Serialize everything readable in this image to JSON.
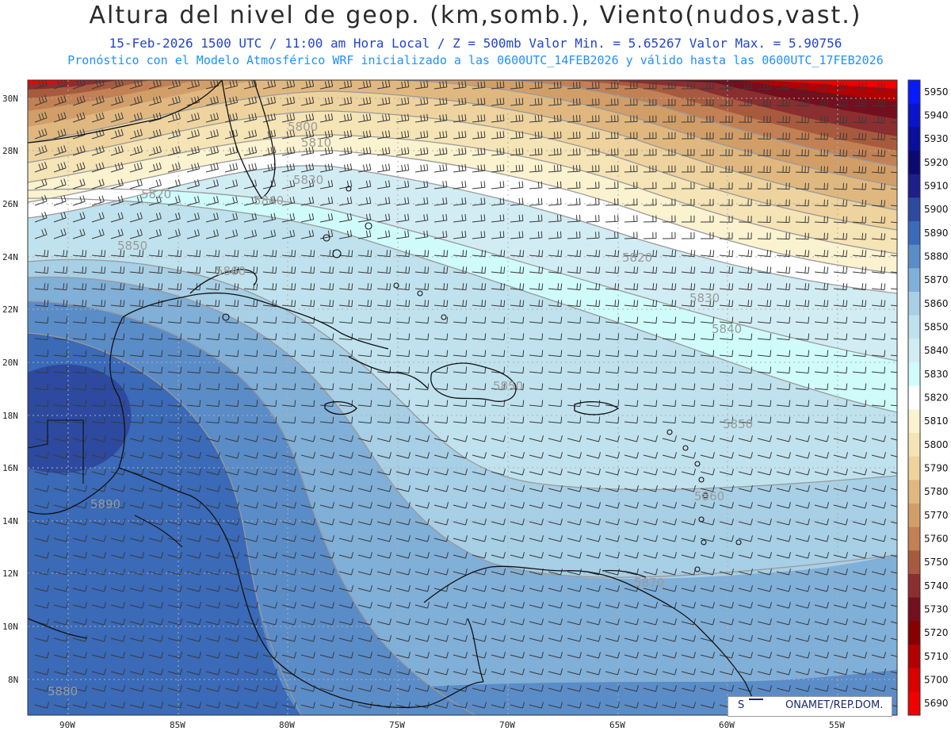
{
  "header": {
    "title": "Altura del nivel de geop. (km,somb.), Viento(nudos,vast.)",
    "subtitle": "15-Feb-2026  1500 UTC / 11:00 am Hora Local / Z = 500mb    Valor Min. = 5.65267  Valor Max. = 5.90756",
    "subtitle2": "Pronóstico con el Modelo Atmosférico WRF inicializado a las 0600UTC_14FEB2026 y válido hasta las  0600UTC_17FEB2026"
  },
  "axes": {
    "lat_ticks": [
      "30N",
      "28N",
      "26N",
      "24N",
      "22N",
      "20N",
      "18N",
      "16N",
      "14N",
      "12N",
      "10N",
      "8N"
    ],
    "lon_ticks": [
      "90W",
      "85W",
      "80W",
      "75W",
      "70W",
      "65W",
      "60W",
      "55W"
    ]
  },
  "colorbar": {
    "levels": [
      "5950",
      "5940",
      "5930",
      "5920",
      "5910",
      "5900",
      "5890",
      "5880",
      "5870",
      "5860",
      "5850",
      "5840",
      "5830",
      "5820",
      "5810",
      "5800",
      "5790",
      "5780",
      "5770",
      "5760",
      "5750",
      "5740",
      "5730",
      "5720",
      "5710",
      "5700",
      "5690"
    ],
    "colors": [
      "#0a1aff",
      "#0a14c8",
      "#0a0e9c",
      "#0c0a72",
      "#1e1e8c",
      "#2d4aa0",
      "#3a6ab8",
      "#5a8cc8",
      "#80afd8",
      "#a7cfe6",
      "#bfe2ee",
      "#d2ecf4",
      "#cffbfb",
      "#ffffff",
      "#fbf2d0",
      "#f5e4b6",
      "#eed39e",
      "#e0b87f",
      "#d29e68",
      "#c28054",
      "#a85a3e",
      "#8a2e30",
      "#730f1e",
      "#8a0000",
      "#b30000",
      "#d90000",
      "#f00000"
    ]
  },
  "contour_labels": [
    "5800",
    "5810",
    "5820",
    "5830",
    "5840",
    "5850",
    "5860",
    "5870",
    "5880",
    "5890"
  ],
  "credit": {
    "symbol": "S",
    "text": "ONAMET/REP.DOM."
  }
}
